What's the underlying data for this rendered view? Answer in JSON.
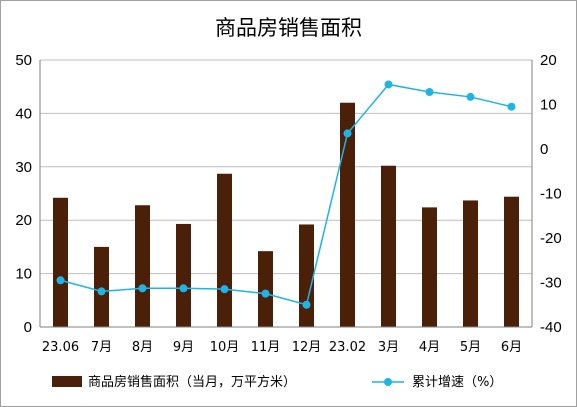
{
  "chart_data": {
    "type": "bar+line",
    "title": "商品房销售面积",
    "categories": [
      "23.06",
      "7月",
      "8月",
      "9月",
      "10月",
      "11月",
      "12月",
      "23.02",
      "3月",
      "4月",
      "5月",
      "6月"
    ],
    "series": [
      {
        "name": "商品房销售面积（当月，万平方米）",
        "type": "bar",
        "axis": "left",
        "color": "#4a2108",
        "values": [
          24.2,
          15.0,
          22.8,
          19.3,
          28.7,
          14.2,
          19.2,
          42.0,
          30.2,
          22.4,
          23.7,
          24.4
        ]
      },
      {
        "name": "累计增速（%）",
        "type": "line",
        "axis": "right",
        "color": "#1fb4e6",
        "values": [
          -29.5,
          -32.0,
          -31.3,
          -31.3,
          -31.5,
          -32.5,
          -35.0,
          3.5,
          14.5,
          12.8,
          11.7,
          9.5
        ]
      }
    ],
    "y_left": {
      "ylim": [
        0,
        50
      ],
      "ticks": [
        0,
        10,
        20,
        30,
        40,
        50
      ]
    },
    "y_right": {
      "ylim": [
        -40,
        20
      ],
      "ticks": [
        -40,
        -30,
        -20,
        -10,
        0,
        10,
        20
      ]
    },
    "grid": true,
    "legend": "bottom"
  }
}
